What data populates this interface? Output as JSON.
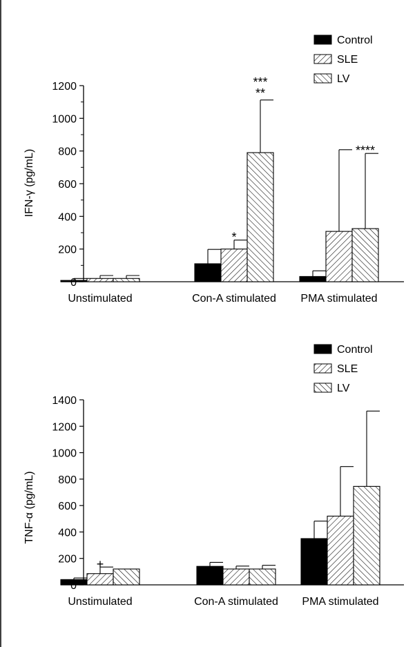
{
  "chart_data": [
    {
      "type": "bar",
      "ylabel": "IFN-γ (pg/mL)",
      "ylim": [
        0,
        1200
      ],
      "yticks": [
        0,
        200,
        400,
        600,
        800,
        1000,
        1200
      ],
      "categories": [
        "Unstimulated",
        "Con-A stimulated",
        "PMA stimulated"
      ],
      "legend": {
        "placement": "top-right"
      },
      "series": [
        {
          "name": "Control",
          "pattern": "solid",
          "values": [
            8,
            110,
            32
          ],
          "errors": [
            12,
            88,
            35
          ]
        },
        {
          "name": "SLE",
          "pattern": "hatch-right",
          "values": [
            20,
            200,
            308
          ],
          "errors": [
            18,
            55,
            500
          ]
        },
        {
          "name": "LV",
          "pattern": "hatch-left",
          "values": [
            20,
            790,
            325
          ],
          "errors": [
            18,
            322,
            460
          ]
        }
      ],
      "annotations": [
        {
          "text": "*",
          "category": 1,
          "series": 1
        },
        {
          "text": "***",
          "category": 1,
          "series": 2,
          "line": 1
        },
        {
          "text": "**",
          "category": 1,
          "series": 2,
          "line": 2
        },
        {
          "text": "****",
          "category": 2,
          "series": 2
        }
      ]
    },
    {
      "type": "bar",
      "ylabel": "TNF-α (pg/mL)",
      "ylim": [
        0,
        1400
      ],
      "yticks": [
        0,
        200,
        400,
        600,
        800,
        1000,
        1200,
        1400
      ],
      "categories": [
        "Unstimulated",
        "Con-A stimulated",
        "PMA stimulated"
      ],
      "legend": {
        "placement": "top-right"
      },
      "series": [
        {
          "name": "Control",
          "pattern": "solid",
          "values": [
            40,
            140,
            350
          ],
          "errors": [
            12,
            30,
            132
          ]
        },
        {
          "name": "SLE",
          "pattern": "hatch-right",
          "values": [
            85,
            120,
            520
          ],
          "errors": [
            50,
            22,
            375
          ]
        },
        {
          "name": "LV",
          "pattern": "hatch-left",
          "values": [
            120,
            120,
            745
          ],
          "errors": [
            0,
            28,
            570
          ]
        }
      ],
      "annotations": [
        {
          "text": "+",
          "category": 0,
          "series": 1
        }
      ]
    }
  ]
}
